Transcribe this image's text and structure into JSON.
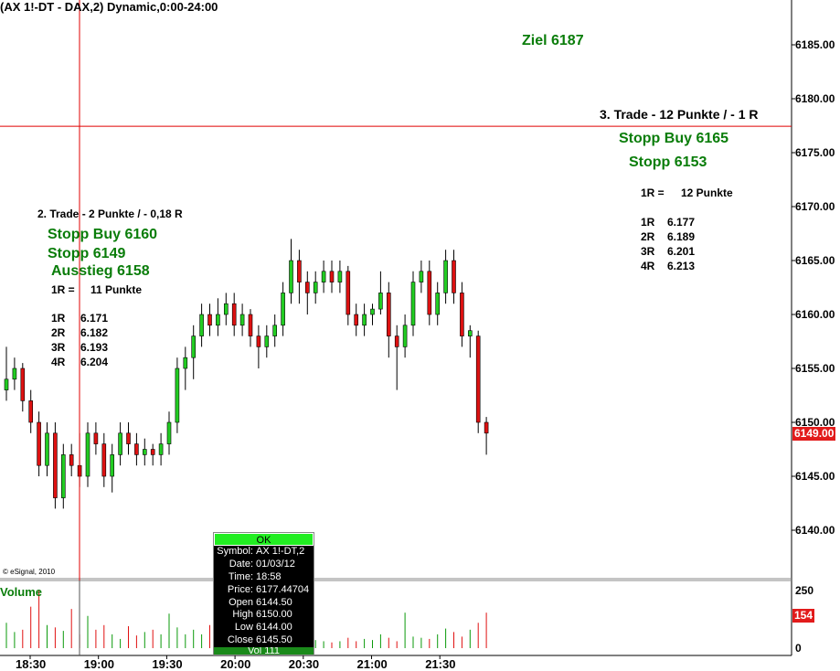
{
  "title": "(AX 1!-DT - DAX,2) Dynamic,0:00-24:00",
  "copyright": "© eSignal, 2010",
  "volume_label": "Volume",
  "annotations": {
    "ziel": "Ziel 6187",
    "trade3": "3. Trade - 12 Punkte / - 1 R",
    "t3_stopp_buy": "Stopp Buy 6165",
    "t3_stopp": "Stopp 6153",
    "t3_1r": "1R =",
    "t3_1r_val": "12 Punkte",
    "t3_levels": [
      [
        "1R",
        "6.177"
      ],
      [
        "2R",
        "6.189"
      ],
      [
        "3R",
        "6.201"
      ],
      [
        "4R",
        "6.213"
      ]
    ],
    "trade2": "2. Trade - 2 Punkte / - 0,18 R",
    "t2_stopp_buy": "Stopp Buy 6160",
    "t2_stopp": "Stopp 6149",
    "t2_ausstieg": "Ausstieg 6158",
    "t2_1r": "1R =",
    "t2_1r_val": "11 Punkte",
    "t2_levels": [
      [
        "1R",
        "6.171"
      ],
      [
        "2R",
        "6.182"
      ],
      [
        "3R",
        "6.193"
      ],
      [
        "4R",
        "6.204"
      ]
    ]
  },
  "price_axis": [
    "6185.00",
    "6180.00",
    "6175.00",
    "6170.00",
    "6165.00",
    "6160.00",
    "6155.00",
    "6150.00",
    "6145.00",
    "6140.00"
  ],
  "last_price": "6149.00",
  "volume_axis": [
    "250",
    "0"
  ],
  "last_volume": "154",
  "time_axis": [
    "18:30",
    "19:00",
    "19:30",
    "20:00",
    "20:30",
    "21:00",
    "21:30"
  ],
  "crosshair_price": 6177.44704,
  "tooltip": {
    "ok": "OK",
    "rows": [
      [
        "Symbol:",
        "AX 1!-DT,2"
      ],
      [
        "Date:",
        "01/03/12"
      ],
      [
        "Time:",
        "18:58"
      ],
      [
        "Price:",
        "6177.44704"
      ],
      [
        "Open",
        "6144.50"
      ],
      [
        "High",
        "6150.00"
      ],
      [
        "Low",
        "6144.00"
      ],
      [
        "Close",
        "6145.50"
      ]
    ],
    "vol": "Vol 111"
  },
  "colors": {
    "up": "#22cc22",
    "down": "#dd1111",
    "crosshair": "#e00000",
    "annotation_green": "#0a7d0a"
  },
  "chart_data": {
    "type": "candlestick",
    "ylim": [
      6137,
      6190
    ],
    "candles": [
      [
        6153,
        6157,
        6152,
        6154
      ],
      [
        6154,
        6156,
        6153,
        6155
      ],
      [
        6155,
        6155.5,
        6151,
        6152
      ],
      [
        6152,
        6153,
        6149,
        6150
      ],
      [
        6150,
        6151,
        6145,
        6146
      ],
      [
        6146,
        6150,
        6145,
        6149
      ],
      [
        6149,
        6150,
        6142,
        6143
      ],
      [
        6143,
        6148,
        6142,
        6147
      ],
      [
        6147,
        6148,
        6145,
        6146
      ],
      [
        6146,
        6149,
        6144,
        6145
      ],
      [
        6145,
        6150,
        6144,
        6149
      ],
      [
        6149,
        6150,
        6147,
        6148
      ],
      [
        6148,
        6149,
        6144,
        6145
      ],
      [
        6145,
        6148,
        6143.5,
        6147
      ],
      [
        6147,
        6150,
        6146,
        6149
      ],
      [
        6149,
        6150,
        6147,
        6148
      ],
      [
        6148,
        6149,
        6146,
        6147
      ],
      [
        6147,
        6148.5,
        6146,
        6147.5
      ],
      [
        6147.5,
        6148,
        6146,
        6147
      ],
      [
        6147,
        6149,
        6146,
        6148
      ],
      [
        6148,
        6151,
        6147,
        6150
      ],
      [
        6150,
        6156,
        6149,
        6155
      ],
      [
        6155,
        6157,
        6153,
        6156
      ],
      [
        6156,
        6159,
        6154,
        6158
      ],
      [
        6158,
        6161,
        6157,
        6160
      ],
      [
        6160,
        6161,
        6158,
        6159
      ],
      [
        6159,
        6161.5,
        6158,
        6160
      ],
      [
        6160,
        6162,
        6159,
        6161
      ],
      [
        6161,
        6162,
        6158,
        6159
      ],
      [
        6159,
        6161,
        6158,
        6160
      ],
      [
        6160,
        6160.5,
        6157,
        6158
      ],
      [
        6158,
        6159,
        6155,
        6157
      ],
      [
        6157,
        6159,
        6156,
        6158
      ],
      [
        6158,
        6160,
        6157,
        6159
      ],
      [
        6159,
        6163,
        6158,
        6162
      ],
      [
        6162,
        6167,
        6161,
        6165
      ],
      [
        6165,
        6166,
        6161,
        6163
      ],
      [
        6163,
        6164,
        6160,
        6162
      ],
      [
        6162,
        6164,
        6161,
        6163
      ],
      [
        6163,
        6165,
        6162,
        6164
      ],
      [
        6164,
        6165,
        6162,
        6163
      ],
      [
        6163,
        6165,
        6162,
        6164
      ],
      [
        6164,
        6164.5,
        6159,
        6160
      ],
      [
        6160,
        6161,
        6158,
        6159
      ],
      [
        6159,
        6161,
        6158,
        6160
      ],
      [
        6160,
        6161,
        6159,
        6160.5
      ],
      [
        6160.5,
        6164,
        6160,
        6162
      ],
      [
        6162,
        6163,
        6156,
        6158
      ],
      [
        6158,
        6159,
        6153,
        6157
      ],
      [
        6157,
        6160,
        6156,
        6159
      ],
      [
        6159,
        6164,
        6158,
        6163
      ],
      [
        6163,
        6165,
        6162,
        6164
      ],
      [
        6164,
        6165,
        6159,
        6160
      ],
      [
        6160,
        6163,
        6159,
        6162
      ],
      [
        6162,
        6166,
        6161,
        6165
      ],
      [
        6165,
        6166,
        6161,
        6162
      ],
      [
        6162,
        6163,
        6157,
        6158
      ],
      [
        6158,
        6159,
        6156,
        6158.5
      ],
      [
        6158,
        6158.5,
        6149,
        6150
      ],
      [
        6150,
        6150.5,
        6147,
        6149
      ]
    ],
    "volumes": [
      110,
      70,
      80,
      180,
      250,
      100,
      90,
      75,
      170,
      60,
      140,
      80,
      100,
      60,
      40,
      95,
      55,
      70,
      80,
      60,
      150,
      90,
      60,
      80,
      60,
      100,
      50,
      70,
      45,
      60,
      40,
      40,
      35,
      30,
      45,
      55,
      60,
      40,
      35,
      30,
      25,
      30,
      45,
      30,
      40,
      35,
      60,
      45,
      30,
      154,
      50,
      45,
      40,
      60,
      85,
      70,
      50,
      80,
      110,
      154
    ]
  }
}
